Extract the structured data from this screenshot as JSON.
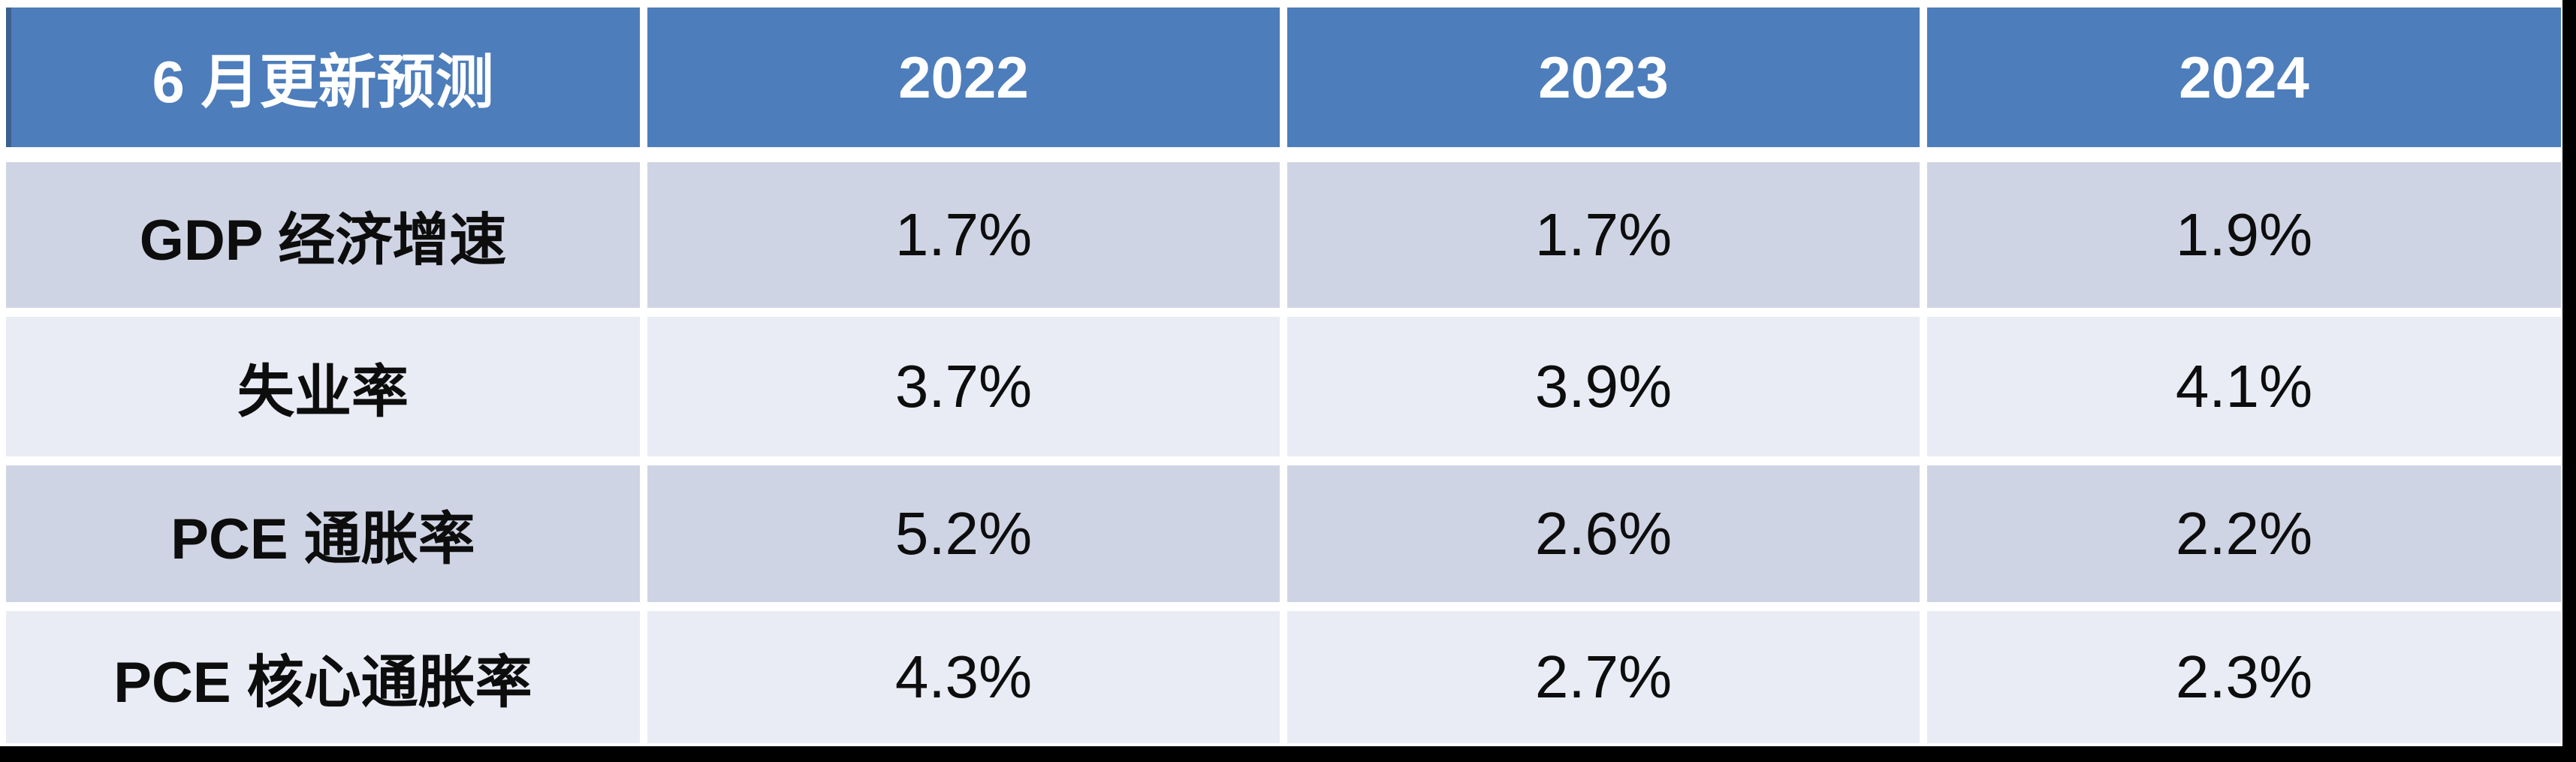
{
  "chart_data": {
    "type": "table",
    "title": "6 月更新预测",
    "categories": [
      "2022",
      "2023",
      "2024"
    ],
    "series": [
      {
        "name": "GDP 经济增速",
        "values": [
          1.7,
          1.7,
          1.9
        ]
      },
      {
        "name": "失业率",
        "values": [
          3.7,
          3.9,
          4.1
        ]
      },
      {
        "name": "PCE 通胀率",
        "values": [
          5.2,
          2.6,
          2.2
        ]
      },
      {
        "name": "PCE 核心通胀率",
        "values": [
          4.3,
          2.7,
          2.3
        ]
      }
    ],
    "unit": "%",
    "legend_position": "none",
    "layout": "banded-rows-with-white-separators"
  },
  "table": {
    "header": {
      "title": "6 月更新预测",
      "years": [
        "2022",
        "2023",
        "2024"
      ]
    },
    "rows": [
      {
        "label": "GDP 经济增速",
        "values": [
          "1.7%",
          "1.7%",
          "1.9%"
        ]
      },
      {
        "label": "失业率",
        "values": [
          "3.7%",
          "3.9%",
          "4.1%"
        ]
      },
      {
        "label": "PCE 通胀率",
        "values": [
          "5.2%",
          "2.6%",
          "2.2%"
        ]
      },
      {
        "label": "PCE 核心通胀率",
        "values": [
          "4.3%",
          "2.7%",
          "2.3%"
        ]
      }
    ]
  },
  "colors": {
    "header_bg": "#4d7dbb",
    "header_accent_edge": "#3b618f",
    "header_text": "#ffffff",
    "band_dark": "#cfd4e4",
    "band_light": "#e9ecf4",
    "separator": "#ffffff",
    "body_text": "#0d0d0d",
    "screen_edge": "#000000"
  }
}
